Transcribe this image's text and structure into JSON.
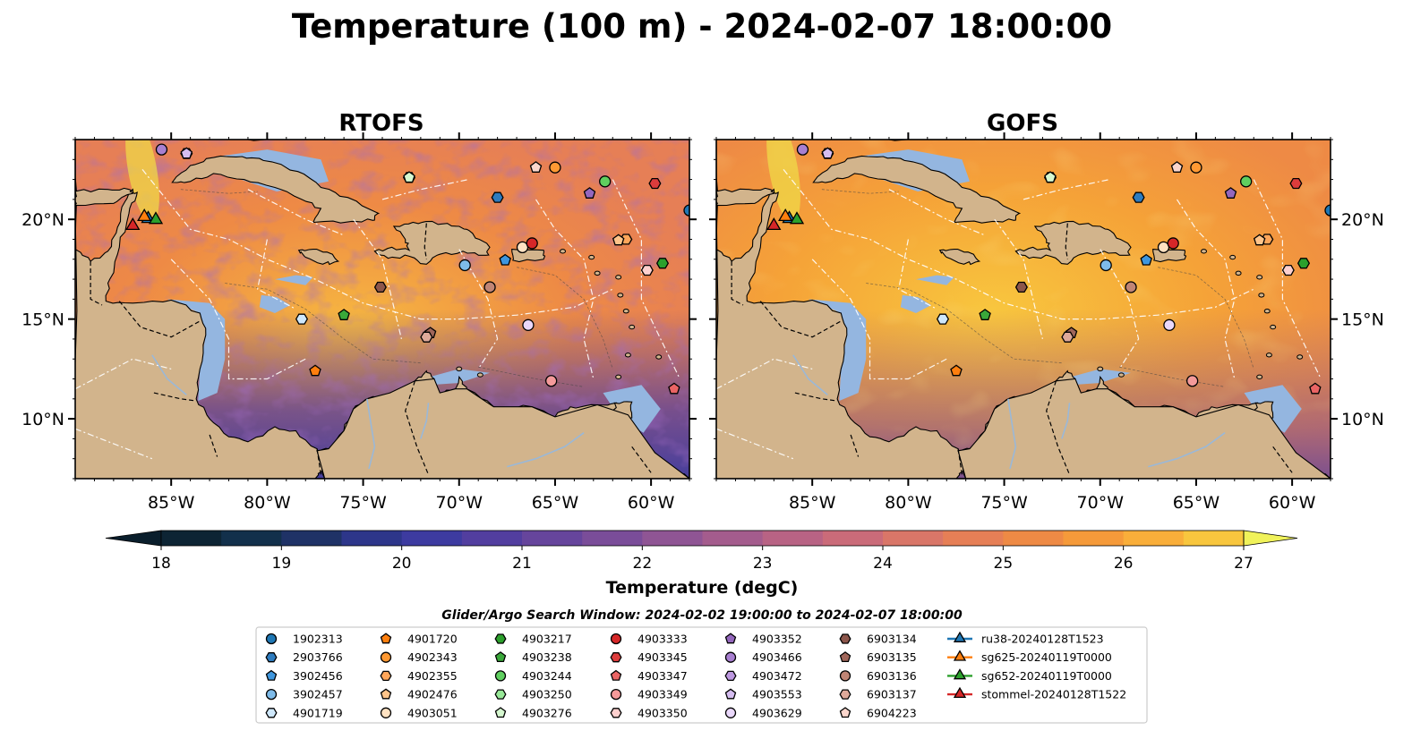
{
  "figure": {
    "title": "Temperature (100 m) - 2024-02-07 18:00:00",
    "search_window": "Glider/Argo Search Window: 2024-02-02 19:00:00 to 2024-02-07 18:00:00"
  },
  "panels": [
    {
      "title": "RTOFS",
      "model": "rtofs"
    },
    {
      "title": "GOFS",
      "model": "gofs"
    }
  ],
  "map": {
    "lon_range": [
      -90,
      -58
    ],
    "lat_range": [
      7,
      24
    ],
    "lon_ticks": [
      {
        "value": -85,
        "label": "85°W"
      },
      {
        "value": -80,
        "label": "80°W"
      },
      {
        "value": -75,
        "label": "75°W"
      },
      {
        "value": -70,
        "label": "70°W"
      },
      {
        "value": -65,
        "label": "65°W"
      },
      {
        "value": -60,
        "label": "60°W"
      }
    ],
    "lat_ticks": [
      {
        "value": 20,
        "label": "20°N"
      },
      {
        "value": 15,
        "label": "15°N"
      },
      {
        "value": 10,
        "label": "10°N"
      }
    ],
    "land_color": "#d2b48c",
    "shelf_color": "#94b6e0",
    "deep_pacific_color": "#082a36"
  },
  "colorbar": {
    "label": "Temperature (degC)",
    "min": 18,
    "max": 27,
    "step": 0.5,
    "ticks": [
      "18",
      "19",
      "20",
      "21",
      "22",
      "23",
      "24",
      "25",
      "26",
      "27"
    ],
    "colors": [
      "#0d2434",
      "#12304b",
      "#1f3266",
      "#2d368a",
      "#3d3ba0",
      "#523e9f",
      "#66459c",
      "#7a4d99",
      "#8f5594",
      "#a45c8d",
      "#b86384",
      "#ca6b79",
      "#d97668",
      "#e67f56",
      "#ee8a45",
      "#f59a3a",
      "#f9ae3a",
      "#f8c63e",
      "#efde47"
    ],
    "under_color": "#0a1e2c",
    "over_color": "#f0f25a"
  },
  "legend": {
    "columns": [
      [
        {
          "label": "1902313",
          "marker": "circle",
          "color": "#1f77b4"
        },
        {
          "label": "2903766",
          "marker": "hexagon",
          "color": "#2e7cbf"
        },
        {
          "label": "3902456",
          "marker": "pentagon",
          "color": "#3f96dd"
        },
        {
          "label": "3902457",
          "marker": "circle",
          "color": "#7ebbe9"
        },
        {
          "label": "4901719",
          "marker": "hexagon",
          "color": "#cfe8fb"
        }
      ],
      [
        {
          "label": "4901720",
          "marker": "pentagon",
          "color": "#ff7f0e"
        },
        {
          "label": "4902343",
          "marker": "circle",
          "color": "#ff9933"
        },
        {
          "label": "4902355",
          "marker": "hexagon",
          "color": "#ffa65a"
        },
        {
          "label": "4902476",
          "marker": "pentagon",
          "color": "#ffc48a"
        },
        {
          "label": "4903051",
          "marker": "circle",
          "color": "#ffe2c2"
        }
      ],
      [
        {
          "label": "4903217",
          "marker": "hexagon",
          "color": "#2ca02c"
        },
        {
          "label": "4903238",
          "marker": "pentagon",
          "color": "#3aa83a"
        },
        {
          "label": "4903244",
          "marker": "circle",
          "color": "#5fcf5f"
        },
        {
          "label": "4903250",
          "marker": "hexagon",
          "color": "#98e898"
        },
        {
          "label": "4903276",
          "marker": "pentagon",
          "color": "#d6f8d0"
        }
      ],
      [
        {
          "label": "4903333",
          "marker": "circle",
          "color": "#d62728"
        },
        {
          "label": "4903345",
          "marker": "hexagon",
          "color": "#dc3c3c"
        },
        {
          "label": "4903347",
          "marker": "pentagon",
          "color": "#ea6464"
        },
        {
          "label": "4903349",
          "marker": "circle",
          "color": "#f49a9a"
        },
        {
          "label": "4903350",
          "marker": "hexagon",
          "color": "#fdd0ce"
        }
      ],
      [
        {
          "label": "4903352",
          "marker": "pentagon",
          "color": "#9467bd"
        },
        {
          "label": "4903466",
          "marker": "circle",
          "color": "#a87fd0"
        },
        {
          "label": "4903472",
          "marker": "hexagon",
          "color": "#bd98e0"
        },
        {
          "label": "4903553",
          "marker": "pentagon",
          "color": "#d5bdf0"
        },
        {
          "label": "4903629",
          "marker": "circle",
          "color": "#ead8fb"
        }
      ],
      [
        {
          "label": "6903134",
          "marker": "hexagon",
          "color": "#8c564b"
        },
        {
          "label": "6903135",
          "marker": "pentagon",
          "color": "#a0665a"
        },
        {
          "label": "6903136",
          "marker": "circle",
          "color": "#c08575"
        },
        {
          "label": "6903137",
          "marker": "hexagon",
          "color": "#dea99a"
        },
        {
          "label": "6904223",
          "marker": "pentagon",
          "color": "#fbd6cc"
        }
      ],
      [
        {
          "label": "ru38-20240128T1523",
          "marker": "triangle",
          "color": "#1f77b4",
          "line": true
        },
        {
          "label": "sg625-20240119T0000",
          "marker": "triangle",
          "color": "#ff7f0e",
          "line": true
        },
        {
          "label": "sg652-20240119T0000",
          "marker": "triangle",
          "color": "#2ca02c",
          "line": true
        },
        {
          "label": "stommel-20240128T1522",
          "marker": "triangle",
          "color": "#d62728",
          "line": true
        }
      ]
    ]
  },
  "platforms": [
    {
      "id": "1902313",
      "lon": -58.0,
      "lat": 20.45
    },
    {
      "id": "2903766",
      "lon": -68.0,
      "lat": 21.1
    },
    {
      "id": "3902456",
      "lon": -67.6,
      "lat": 17.95
    },
    {
      "id": "3902457",
      "lon": -69.7,
      "lat": 17.7
    },
    {
      "id": "4901719",
      "lon": -78.2,
      "lat": 15.0
    },
    {
      "id": "4901720",
      "lon": -77.5,
      "lat": 12.4
    },
    {
      "id": "4902343",
      "lon": -65.0,
      "lat": 22.6
    },
    {
      "id": "4902355",
      "lon": -61.3,
      "lat": 19.0
    },
    {
      "id": "4902476",
      "lon": -61.7,
      "lat": 18.95
    },
    {
      "id": "4903051",
      "lon": -66.7,
      "lat": 18.6
    },
    {
      "id": "4903217",
      "lon": -59.4,
      "lat": 17.8
    },
    {
      "id": "4903238",
      "lon": -76.0,
      "lat": 15.2
    },
    {
      "id": "4903244",
      "lon": -62.4,
      "lat": 21.9
    },
    {
      "id": "4903250",
      "lon": -72.6,
      "lat": 22.1
    },
    {
      "id": "4903276",
      "lon": -72.6,
      "lat": 22.1
    },
    {
      "id": "4903333",
      "lon": -66.2,
      "lat": 18.8
    },
    {
      "id": "4903345",
      "lon": -59.8,
      "lat": 21.8
    },
    {
      "id": "4903347",
      "lon": -58.8,
      "lat": 11.5
    },
    {
      "id": "4903349",
      "lon": -65.2,
      "lat": 11.9
    },
    {
      "id": "4903350",
      "lon": -60.2,
      "lat": 17.45
    },
    {
      "id": "4903352",
      "lon": -63.2,
      "lat": 21.3
    },
    {
      "id": "4903466",
      "lon": -85.5,
      "lat": 23.5
    },
    {
      "id": "4903472",
      "lon": -84.2,
      "lat": 23.3
    },
    {
      "id": "4903553",
      "lon": -84.2,
      "lat": 23.3
    },
    {
      "id": "4903629",
      "lon": -66.4,
      "lat": 14.7
    },
    {
      "id": "6903134",
      "lon": -74.1,
      "lat": 16.6
    },
    {
      "id": "6903135",
      "lon": -71.5,
      "lat": 14.3
    },
    {
      "id": "6903136",
      "lon": -68.4,
      "lat": 16.6
    },
    {
      "id": "6903137",
      "lon": -71.7,
      "lat": 14.1
    },
    {
      "id": "6904223",
      "lon": -66.0,
      "lat": 22.6
    }
  ],
  "gliders": [
    {
      "id": "ru38-20240128T1523",
      "lon": -86.2,
      "lat": 20.1
    },
    {
      "id": "sg625-20240119T0000",
      "lon": -86.4,
      "lat": 20.2
    },
    {
      "id": "sg652-20240119T0000",
      "lon": -85.8,
      "lat": 20.05
    },
    {
      "id": "stommel-20240128T1522",
      "lon": -87.0,
      "lat": 19.75
    }
  ]
}
